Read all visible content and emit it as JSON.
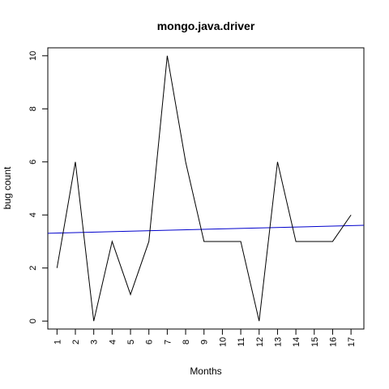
{
  "chart_data": {
    "type": "line",
    "title": "mongo.java.driver",
    "xlabel": "Months",
    "ylabel": "bug count",
    "x": [
      1,
      2,
      3,
      4,
      5,
      6,
      7,
      8,
      9,
      10,
      11,
      12,
      13,
      14,
      15,
      16,
      17
    ],
    "xlim": [
      0.5,
      17.7
    ],
    "ylim": [
      -0.3,
      10.3
    ],
    "y_ticks": [
      0,
      2,
      4,
      6,
      8,
      10
    ],
    "x_tick_labels": [
      "1",
      "2",
      "3",
      "4",
      "5",
      "6",
      "7",
      "8",
      "9",
      "10",
      "11",
      "12",
      "13",
      "14",
      "15",
      "16",
      "17"
    ],
    "y_tick_labels": [
      "0",
      "2",
      "4",
      "6",
      "8",
      "10"
    ],
    "series": [
      {
        "values": [
          2,
          6,
          0,
          3,
          1,
          3,
          10,
          6,
          3,
          3,
          3,
          0,
          6,
          3,
          3,
          3,
          4
        ],
        "color": "#000000"
      }
    ],
    "trend_line": {
      "x": [
        0.5,
        17.7
      ],
      "y": [
        3.31,
        3.61
      ],
      "color": "#0000cc"
    },
    "grid": false
  }
}
